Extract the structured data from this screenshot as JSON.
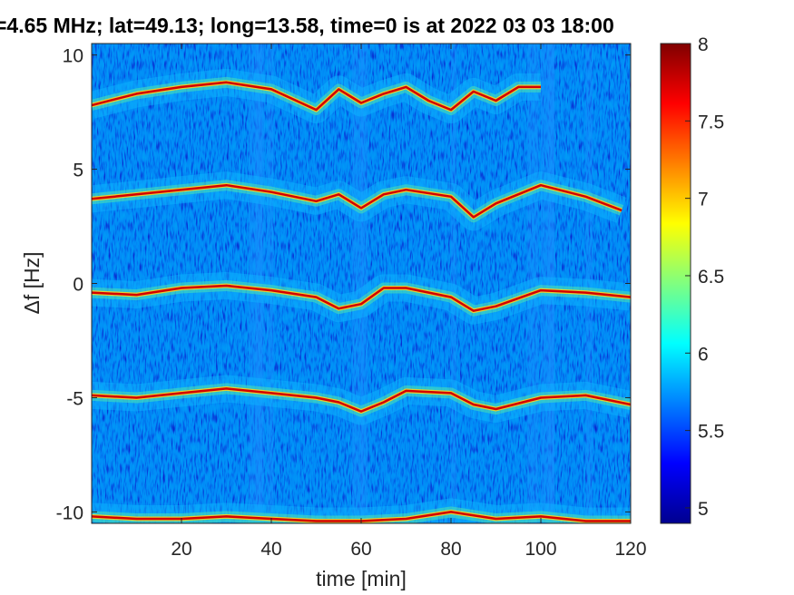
{
  "chart_data": {
    "type": "heatmap",
    "title": "=4.65 MHz;  lat=49.13; long=13.58, time=0 is at 2022 03 03 18:00",
    "xlabel": "time [min]",
    "ylabel": "Δf [Hz]",
    "xlim": [
      0,
      120
    ],
    "ylim": [
      -10.5,
      10.5
    ],
    "x_ticks": [
      "20",
      "40",
      "60",
      "80",
      "100",
      "120"
    ],
    "y_ticks": [
      "10",
      "5",
      "0",
      "-5",
      "-10"
    ],
    "colorbar": {
      "range": [
        4.9,
        8
      ],
      "ticks": [
        "8",
        "7.5",
        "7",
        "6.5",
        "6",
        "5.5",
        "5"
      ],
      "colormap": "jet"
    },
    "traces": [
      {
        "name": "line at +8 Hz",
        "x": [
          0,
          10,
          20,
          30,
          40,
          50,
          55,
          60,
          65,
          70,
          75,
          80,
          85,
          90,
          95,
          100
        ],
        "y": [
          7.8,
          8.3,
          8.6,
          8.8,
          8.5,
          7.6,
          8.5,
          7.9,
          8.3,
          8.6,
          8.0,
          7.6,
          8.4,
          8.0,
          8.6,
          8.6
        ]
      },
      {
        "name": "line at +4 Hz",
        "x": [
          0,
          10,
          20,
          30,
          40,
          50,
          55,
          60,
          65,
          70,
          80,
          85,
          90,
          100,
          110,
          118
        ],
        "y": [
          3.7,
          3.9,
          4.1,
          4.3,
          4.0,
          3.6,
          3.9,
          3.3,
          3.9,
          4.1,
          3.8,
          2.9,
          3.5,
          4.3,
          3.8,
          3.2
        ]
      },
      {
        "name": "line at 0 Hz",
        "x": [
          0,
          10,
          20,
          30,
          40,
          50,
          55,
          60,
          65,
          70,
          80,
          85,
          90,
          100,
          110,
          120
        ],
        "y": [
          -0.4,
          -0.5,
          -0.2,
          -0.1,
          -0.3,
          -0.6,
          -1.1,
          -0.9,
          -0.2,
          -0.2,
          -0.6,
          -1.2,
          -1.0,
          -0.3,
          -0.4,
          -0.6
        ]
      },
      {
        "name": "line at -5 Hz",
        "x": [
          0,
          10,
          20,
          30,
          40,
          50,
          55,
          60,
          65,
          70,
          80,
          85,
          90,
          100,
          110,
          120
        ],
        "y": [
          -4.9,
          -5.0,
          -4.8,
          -4.6,
          -4.8,
          -5.0,
          -5.2,
          -5.6,
          -5.2,
          -4.7,
          -4.8,
          -5.3,
          -5.5,
          -5.0,
          -4.9,
          -5.3
        ]
      },
      {
        "name": "line at -10.3 Hz",
        "x": [
          0,
          10,
          20,
          30,
          40,
          50,
          60,
          70,
          80,
          90,
          100,
          110,
          120
        ],
        "y": [
          -10.2,
          -10.3,
          -10.3,
          -10.2,
          -10.3,
          -10.4,
          -10.4,
          -10.3,
          -10.0,
          -10.3,
          -10.2,
          -10.4,
          -10.4
        ]
      }
    ]
  }
}
